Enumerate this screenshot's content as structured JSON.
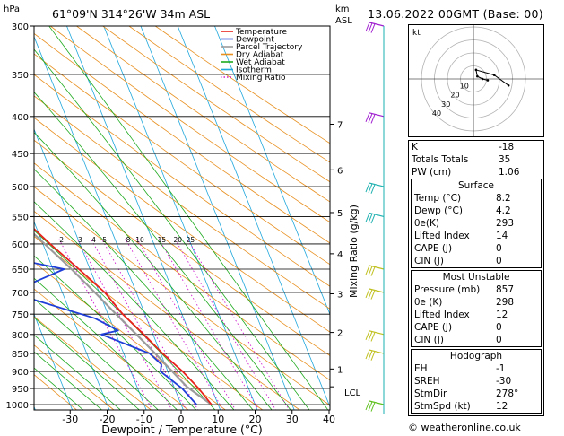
{
  "header": {
    "location": "61°09'N 314°26'W 34m ASL",
    "datetime": "13.06.2022 00GMT (Base: 00)",
    "hpa_label": "hPa",
    "km_label": "km",
    "asl_label": "ASL"
  },
  "chart_data": {
    "type": "skew-t",
    "xlabel": "Dewpoint / Temperature (°C)",
    "ylabel_right": "Mixing Ratio (g/kg)",
    "pressure_ticks": [
      300,
      350,
      400,
      450,
      500,
      550,
      600,
      650,
      700,
      750,
      800,
      850,
      900,
      950,
      1000
    ],
    "temp_ticks": [
      -30,
      -20,
      -10,
      0,
      10,
      20,
      30,
      40
    ],
    "xlim": [
      -40,
      40
    ],
    "ylim_hpa": [
      1000,
      300
    ],
    "km_ticks": [
      {
        "km": "1",
        "p": 893
      },
      {
        "km": "2",
        "p": 795
      },
      {
        "km": "3",
        "p": 703
      },
      {
        "km": "4",
        "p": 619
      },
      {
        "km": "5",
        "p": 543
      },
      {
        "km": "6",
        "p": 474
      },
      {
        "km": "7",
        "p": 410
      }
    ],
    "lcl_label": "LCL",
    "lcl_p": 945,
    "mixing_ratio_labels": [
      "2",
      "3",
      "4",
      "5",
      "8",
      "10",
      "15",
      "20",
      "25"
    ],
    "mixing_ratio_values": [
      2,
      3,
      4,
      5,
      8,
      10,
      15,
      20,
      25
    ],
    "legend": [
      {
        "name": "Temperature",
        "color": "#e8231c",
        "style": "solid"
      },
      {
        "name": "Dewpoint",
        "color": "#1f3fd8",
        "style": "solid"
      },
      {
        "name": "Parcel Trajectory",
        "color": "#9b9b9b",
        "style": "solid"
      },
      {
        "name": "Dry Adiabat",
        "color": "#e89020",
        "style": "solid"
      },
      {
        "name": "Wet Adiabat",
        "color": "#1eaa1e",
        "style": "solid"
      },
      {
        "name": "Isotherm",
        "color": "#22a8dc",
        "style": "solid"
      },
      {
        "name": "Mixing Ratio",
        "color": "#d01ed0",
        "style": "dotted"
      }
    ],
    "temperature": [
      {
        "p": 1000,
        "t": 8.2
      },
      {
        "p": 950,
        "t": 6.5
      },
      {
        "p": 900,
        "t": 4.0
      },
      {
        "p": 850,
        "t": 0.5
      },
      {
        "p": 800,
        "t": -2.5
      },
      {
        "p": 750,
        "t": -6.0
      },
      {
        "p": 700,
        "t": -8.5
      },
      {
        "p": 650,
        "t": -13.0
      },
      {
        "p": 600,
        "t": -18.0
      },
      {
        "p": 550,
        "t": -23.0
      },
      {
        "p": 500,
        "t": -28.0
      },
      {
        "p": 470,
        "t": -31.0
      },
      {
        "p": 450,
        "t": -34.0
      },
      {
        "p": 400,
        "t": -41.5
      },
      {
        "p": 350,
        "t": -49.0
      },
      {
        "p": 300,
        "t": -56.0
      }
    ],
    "dewpoint": [
      {
        "p": 1000,
        "t": 4.2
      },
      {
        "p": 950,
        "t": 2.0
      },
      {
        "p": 900,
        "t": -2.0
      },
      {
        "p": 880,
        "t": -1.0
      },
      {
        "p": 850,
        "t": -3.0
      },
      {
        "p": 800,
        "t": -14.0
      },
      {
        "p": 790,
        "t": -9.0
      },
      {
        "p": 760,
        "t": -14.0
      },
      {
        "p": 700,
        "t": -34.0
      },
      {
        "p": 650,
        "t": -17.0
      },
      {
        "p": 620,
        "t": -35.0
      },
      {
        "p": 600,
        "t": -55.0
      },
      {
        "p": 550,
        "t": -45.0
      },
      {
        "p": 520,
        "t": -38.0
      },
      {
        "p": 500,
        "t": -36.0
      },
      {
        "p": 495,
        "t": -32.0
      },
      {
        "p": 450,
        "t": -34.5
      },
      {
        "p": 400,
        "t": -42.0
      },
      {
        "p": 350,
        "t": -50.5
      },
      {
        "p": 300,
        "t": -57.5
      }
    ],
    "parcel": [
      {
        "p": 1000,
        "t": 8.2
      },
      {
        "p": 945,
        "t": 3.5
      },
      {
        "p": 900,
        "t": 1.2
      },
      {
        "p": 850,
        "t": -1.5
      },
      {
        "p": 800,
        "t": -4.5
      },
      {
        "p": 750,
        "t": -7.8
      },
      {
        "p": 700,
        "t": -11.2
      },
      {
        "p": 650,
        "t": -15.0
      },
      {
        "p": 600,
        "t": -19.5
      },
      {
        "p": 550,
        "t": -24.5
      },
      {
        "p": 500,
        "t": -30.5
      },
      {
        "p": 450,
        "t": -37.0
      },
      {
        "p": 400,
        "t": -44.5
      },
      {
        "p": 350,
        "t": -53.0
      },
      {
        "p": 300,
        "t": -62.0
      }
    ],
    "wind_barbs": [
      {
        "p": 300,
        "color": "#a020d0"
      },
      {
        "p": 400,
        "color": "#a020d0"
      },
      {
        "p": 500,
        "color": "#20b0b0"
      },
      {
        "p": 550,
        "color": "#20b0b0"
      },
      {
        "p": 650,
        "color": "#c0c020"
      },
      {
        "p": 700,
        "color": "#c0c020"
      },
      {
        "p": 800,
        "color": "#c0c020"
      },
      {
        "p": 850,
        "color": "#c0c020"
      },
      {
        "p": 1000,
        "color": "#60c020"
      }
    ]
  },
  "hodograph": {
    "label": "kt",
    "ring_labels": [
      "10",
      "20",
      "30",
      "40"
    ],
    "trace_kt": [
      {
        "u": 11,
        "v": -1
      },
      {
        "u": 7,
        "v": 0
      },
      {
        "u": 3,
        "v": 2
      },
      {
        "u": 2,
        "v": 7
      },
      {
        "u": 16,
        "v": 3
      },
      {
        "u": 27,
        "v": -5
      }
    ]
  },
  "indices": {
    "rows": [
      {
        "label": "K",
        "value": "-18"
      },
      {
        "label": "Totals Totals",
        "value": "35"
      },
      {
        "label": "PW (cm)",
        "value": "1.06"
      }
    ]
  },
  "surface": {
    "title": "Surface",
    "rows": [
      {
        "label": "Temp (°C)",
        "value": "8.2"
      },
      {
        "label": "Dewp (°C)",
        "value": "4.2"
      },
      {
        "label": "θe(K)",
        "value": "293"
      },
      {
        "label": "Lifted Index",
        "value": "14"
      },
      {
        "label": "CAPE (J)",
        "value": "0"
      },
      {
        "label": "CIN (J)",
        "value": "0"
      }
    ]
  },
  "most_unstable": {
    "title": "Most Unstable",
    "rows": [
      {
        "label": "Pressure (mb)",
        "value": "857"
      },
      {
        "label": "θe (K)",
        "value": "298"
      },
      {
        "label": "Lifted Index",
        "value": "12"
      },
      {
        "label": "CAPE (J)",
        "value": "0"
      },
      {
        "label": "CIN (J)",
        "value": "0"
      }
    ]
  },
  "hodograph_table": {
    "title": "Hodograph",
    "rows": [
      {
        "label": "EH",
        "value": "-1"
      },
      {
        "label": "SREH",
        "value": "-30"
      },
      {
        "label": "StmDir",
        "value": "278°"
      },
      {
        "label": "StmSpd (kt)",
        "value": "12"
      }
    ]
  },
  "credit": "© weatheronline.co.uk"
}
